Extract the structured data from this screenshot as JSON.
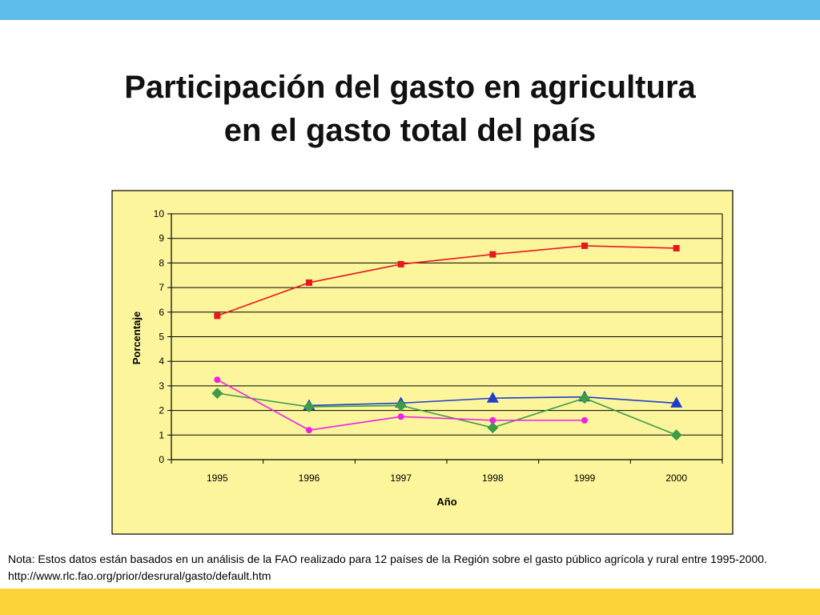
{
  "title": {
    "line1": "Participación del gasto en agricultura",
    "line2": "en el gasto total del país"
  },
  "colors": {
    "top_band": "#5dbde8",
    "bottom_band": "#fdd33a",
    "plot_background": "#fdf59c"
  },
  "chart_data": {
    "type": "line",
    "title": "",
    "xlabel": "Año",
    "ylabel": "Porcentaje",
    "categories": [
      "1995",
      "1996",
      "1997",
      "1998",
      "1999",
      "2000"
    ],
    "ylim": [
      0,
      10
    ],
    "yticks": [
      0,
      1,
      2,
      3,
      4,
      5,
      6,
      7,
      8,
      9,
      10
    ],
    "grid": true,
    "legend": "none",
    "series": [
      {
        "color": "#e8191c",
        "marker": "square",
        "values": [
          5.85,
          7.2,
          7.95,
          8.35,
          8.7,
          8.6
        ]
      },
      {
        "color": "#1f3ec6",
        "marker": "triangle",
        "values": [
          null,
          2.2,
          2.3,
          2.5,
          2.55,
          2.3
        ]
      },
      {
        "color": "#3c9c48",
        "marker": "diamond",
        "values": [
          2.7,
          2.15,
          2.2,
          1.3,
          2.5,
          1.0
        ]
      },
      {
        "color": "#ee1fe6",
        "marker": "circle",
        "values": [
          3.25,
          1.2,
          1.75,
          1.6,
          1.6,
          null
        ]
      }
    ]
  },
  "note": {
    "line1": "Nota: Estos datos están basados en un análisis de la FAO realizado para 12 países de la Región sobre el gasto público agrícola y rural entre 1995-2000.",
    "line2": "http://www.rlc.fao.org/prior/desrural/gasto/default.htm"
  }
}
